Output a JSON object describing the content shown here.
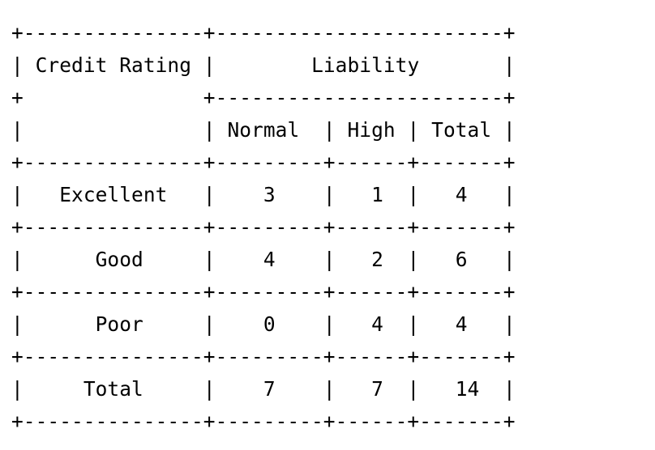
{
  "table": {
    "title": "",
    "row_header": "Credit Rating",
    "column_group": "Liability",
    "columns": [
      "Normal",
      "High",
      "Total"
    ],
    "rows": [
      {
        "label": "Excellent",
        "values": [
          "3",
          "1",
          "4"
        ]
      },
      {
        "label": "Good",
        "values": [
          "4",
          "2",
          "6"
        ]
      },
      {
        "label": "Poor",
        "values": [
          "0",
          "4",
          "4"
        ]
      },
      {
        "label": "Total",
        "values": [
          "7",
          "7",
          "14"
        ]
      }
    ]
  }
}
